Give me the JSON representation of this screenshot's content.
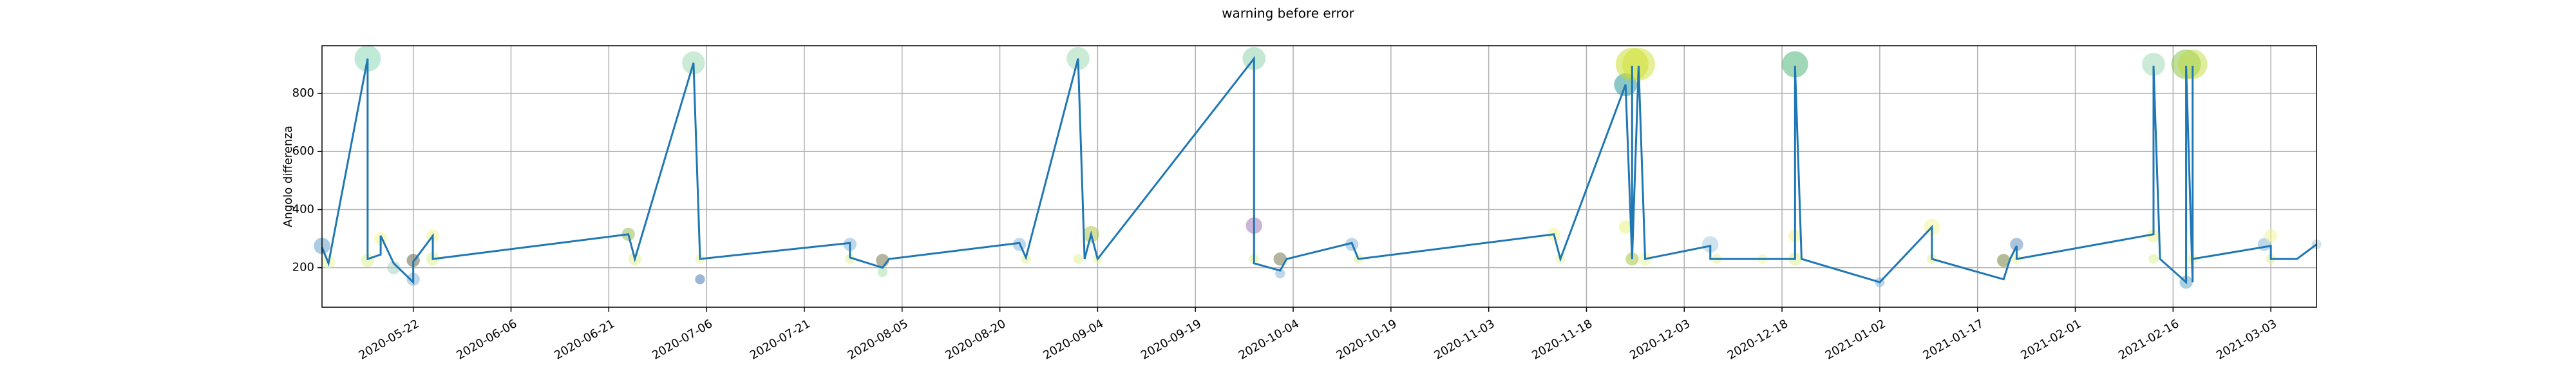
{
  "chart_data": {
    "type": "line",
    "title": "warning before error",
    "y_label": "Angolo differenza",
    "xlim": [
      "2020-05-08",
      "2021-03-10"
    ],
    "xticks": [
      "2020-05-22",
      "2020-06-06",
      "2020-06-21",
      "2020-07-06",
      "2020-07-21",
      "2020-08-05",
      "2020-08-20",
      "2020-09-04",
      "2020-09-19",
      "2020-10-04",
      "2020-10-19",
      "2020-11-03",
      "2020-11-18",
      "2020-12-03",
      "2020-12-18",
      "2021-01-02",
      "2021-01-17",
      "2021-02-01",
      "2021-02-16",
      "2021-03-03"
    ],
    "ylim": [
      64,
      964
    ],
    "yticks": [
      200,
      400,
      600,
      800
    ],
    "grid": true,
    "series": [
      {
        "color": "#1f77b4",
        "x": [
          "2020-05-08",
          "2020-05-09",
          "2020-05-15",
          "2020-05-15",
          "2020-05-17",
          "2020-05-17",
          "2020-05-19",
          "2020-05-22",
          "2020-05-22",
          "2020-05-25",
          "2020-05-25",
          "2020-06-24",
          "2020-06-25",
          "2020-07-04",
          "2020-07-05",
          "2020-07-28",
          "2020-07-28",
          "2020-08-02",
          "2020-08-03",
          "2020-08-23",
          "2020-08-24",
          "2020-09-01",
          "2020-09-02",
          "2020-09-03",
          "2020-09-04",
          "2020-09-28",
          "2020-09-28",
          "2020-10-02",
          "2020-10-03",
          "2020-10-13",
          "2020-10-14",
          "2020-11-13",
          "2020-11-14",
          "2020-11-24",
          "2020-11-25",
          "2020-11-25",
          "2020-11-25",
          "2020-11-26",
          "2020-11-27",
          "2020-12-07",
          "2020-12-07",
          "2020-12-20",
          "2020-12-20",
          "2020-12-21",
          "2021-01-02",
          "2021-01-10",
          "2021-01-10",
          "2021-01-21",
          "2021-01-22",
          "2021-01-23",
          "2021-01-23",
          "2021-02-13",
          "2021-02-13",
          "2021-02-14",
          "2021-02-18",
          "2021-02-18",
          "2021-02-19",
          "2021-02-19",
          "2021-02-19",
          "2021-03-03",
          "2021-03-03",
          "2021-03-07",
          "2021-03-10"
        ],
        "values": [
          270,
          215,
          920,
          230,
          245,
          310,
          215,
          150,
          220,
          310,
          230,
          315,
          230,
          905,
          230,
          285,
          235,
          200,
          230,
          285,
          235,
          920,
          230,
          315,
          230,
          920,
          215,
          190,
          230,
          285,
          230,
          315,
          230,
          830,
          230,
          895,
          230,
          895,
          230,
          275,
          230,
          230,
          895,
          230,
          150,
          340,
          230,
          160,
          230,
          275,
          230,
          315,
          895,
          230,
          150,
          895,
          150,
          895,
          230,
          275,
          230,
          230,
          280
        ]
      }
    ],
    "bubbles": {
      "x": [
        "2020-05-08",
        "2020-05-09",
        "2020-05-15",
        "2020-05-15",
        "2020-05-17",
        "2020-05-19",
        "2020-05-22",
        "2020-05-22",
        "2020-05-25",
        "2020-05-25",
        "2020-06-24",
        "2020-06-25",
        "2020-07-04",
        "2020-07-05",
        "2020-07-05",
        "2020-07-28",
        "2020-07-28",
        "2020-08-02",
        "2020-08-02",
        "2020-08-23",
        "2020-08-24",
        "2020-09-01",
        "2020-09-01",
        "2020-09-03",
        "2020-09-04",
        "2020-09-28",
        "2020-09-28",
        "2020-09-28",
        "2020-10-02",
        "2020-10-02",
        "2020-10-13",
        "2020-10-14",
        "2020-11-13",
        "2020-11-14",
        "2020-11-24",
        "2020-11-24",
        "2020-11-25",
        "2020-11-26",
        "2020-11-25",
        "2020-11-27",
        "2020-12-07",
        "2020-12-08",
        "2020-12-15",
        "2020-12-20",
        "2020-12-20",
        "2020-12-20",
        "2021-01-02",
        "2021-01-10",
        "2021-01-10",
        "2021-01-21",
        "2021-01-23",
        "2021-01-23",
        "2021-02-13",
        "2021-02-13",
        "2021-02-13",
        "2021-02-18",
        "2021-02-19",
        "2021-02-18",
        "2021-02-19",
        "2021-03-02",
        "2021-03-03",
        "2021-03-03",
        "2021-03-10"
      ],
      "values": [
        275,
        220,
        920,
        225,
        300,
        200,
        225,
        160,
        310,
        230,
        315,
        230,
        905,
        230,
        160,
        280,
        230,
        225,
        185,
        280,
        230,
        920,
        230,
        315,
        230,
        920,
        345,
        230,
        230,
        180,
        280,
        230,
        315,
        230,
        830,
        340,
        900,
        900,
        230,
        230,
        280,
        230,
        230,
        900,
        310,
        230,
        150,
        340,
        230,
        225,
        280,
        230,
        900,
        310,
        230,
        900,
        900,
        150,
        230,
        280,
        310,
        230,
        280
      ],
      "sizes": [
        5,
        4,
        8,
        4,
        4,
        4,
        4,
        4,
        4,
        4,
        4,
        4,
        7,
        3,
        3,
        4,
        3,
        4,
        3,
        4,
        3,
        7,
        3,
        5,
        3,
        7,
        5,
        3,
        4,
        3,
        4,
        3,
        4,
        3,
        7,
        4,
        10,
        10,
        4,
        4,
        5,
        3,
        3,
        8,
        4,
        4,
        3,
        5,
        3,
        4,
        4,
        3,
        7,
        4,
        3,
        9,
        9,
        4,
        3,
        4,
        4,
        3,
        3
      ],
      "colors": [
        "#5a9ac8",
        "#e8f59a",
        "#7fd6b0",
        "#d8f08a",
        "#f0f590",
        "#9fd0c0",
        "#5a5a3a",
        "#7fb0d8",
        "#f0f590",
        "#d8f08a",
        "#8cb84a",
        "#e0f090",
        "#9ad8b0",
        "#e8f59a",
        "#3a6ea8",
        "#7fb0d8",
        "#e0f090",
        "#6a6a40",
        "#a0e0a0",
        "#7fb0d8",
        "#e0f090",
        "#9ad8b0",
        "#e0f090",
        "#a8c040",
        "#e8f59a",
        "#8ad0a8",
        "#9a6ab0",
        "#d8f08a",
        "#6a6a40",
        "#7fb0d8",
        "#7fb0d8",
        "#e0f090",
        "#f0f590",
        "#e8f59a",
        "#1a9090",
        "#e8f070",
        "#c8dc20",
        "#d0e030",
        "#a0c030",
        "#e8f59a",
        "#a0c8e0",
        "#e0f090",
        "#e8f59a",
        "#40b070",
        "#f0f080",
        "#d8f08a",
        "#7fb0d8",
        "#f0f590",
        "#e0f090",
        "#6a7a30",
        "#5a8ab8",
        "#e8f59a",
        "#9ad8b0",
        "#f0f080",
        "#d8f08a",
        "#80c040",
        "#c0dc40",
        "#5aa0c0",
        "#e0f090",
        "#7fb0d8",
        "#f0f590",
        "#e0f090",
        "#a0c8e0"
      ]
    }
  }
}
